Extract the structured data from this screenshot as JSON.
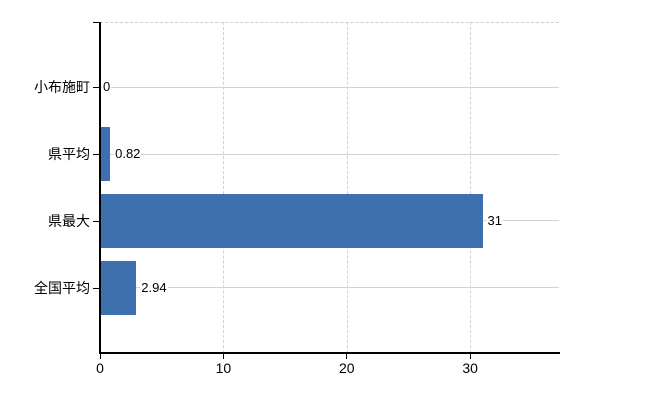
{
  "chart_data": {
    "type": "bar",
    "orientation": "horizontal",
    "title": "",
    "categories": [
      "小布施町",
      "県平均",
      "県最大",
      "全国平均"
    ],
    "values": [
      0,
      0.82,
      31,
      2.94
    ],
    "value_labels": [
      "0",
      "0.82",
      "31",
      "2.94"
    ],
    "xticks": [
      0,
      10,
      20,
      30
    ],
    "xtick_labels": [
      "0",
      "10",
      "20",
      "30"
    ],
    "xlim": [
      0,
      37.2
    ],
    "grid": true,
    "legend": "none",
    "colors": {
      "bar": "#3e6fae",
      "h_gridline": "#cdd6cc",
      "v_gridline_dashed": "#d7cfd3",
      "plot_top_border_dashed": "#d0cdd0",
      "axis": "#000000",
      "text": "#000000",
      "background": "#ffffff"
    }
  }
}
